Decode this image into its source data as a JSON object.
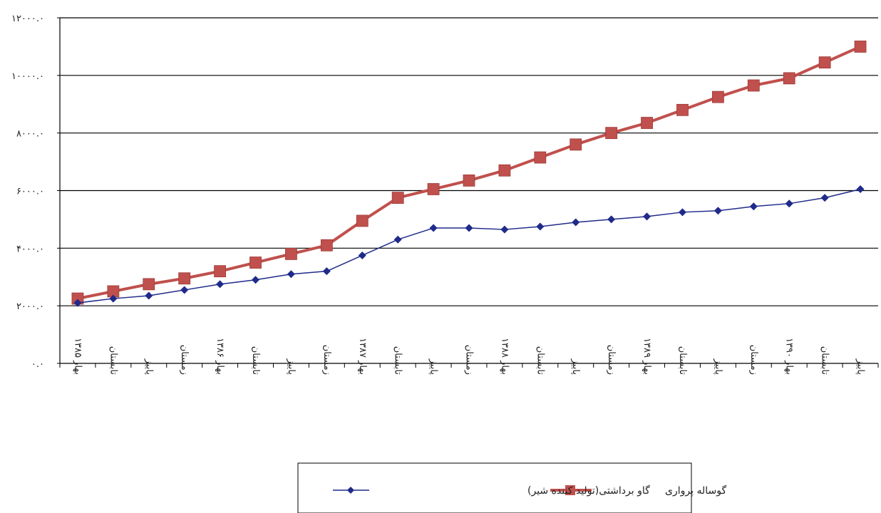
{
  "chart_data": {
    "type": "line",
    "title": "",
    "xlabel": "",
    "ylabel": "",
    "ylim": [
      0,
      12000
    ],
    "y_ticks": [
      0,
      2000,
      4000,
      6000,
      8000,
      10000,
      12000
    ],
    "y_tick_labels": [
      "۰.۰",
      "۲۰۰۰.۰",
      "۴۰۰۰.۰",
      "۶۰۰۰.۰",
      "۸۰۰۰.۰",
      "۱۰۰۰۰.۰",
      "۱۲۰۰۰.۰"
    ],
    "grid": "horizontal",
    "legend_position": "bottom",
    "categories": [
      "بهار ۱۳۸۵",
      "تابستان",
      "پاییز",
      "زمستان",
      "بهار ۱۳۸۶",
      "تابستان",
      "پاییز",
      "زمستان",
      "بهار ۱۳۸۷",
      "تابستان",
      "پاییز",
      "زمستان",
      "بهار ۱۳۸۸",
      "تابستان",
      "پاییز",
      "زمستان",
      "بهار ۱۳۸۹",
      "تابستان",
      "پاییز",
      "زمستان",
      "بهار ۱۳۹۰",
      "تابستان",
      "پاییز"
    ],
    "series": [
      {
        "name": "گوساله پرواری",
        "color": "#c0504d",
        "marker": "square",
        "values": [
          2250,
          2500,
          2750,
          2950,
          3200,
          3500,
          3800,
          4100,
          4950,
          5750,
          6050,
          6350,
          6700,
          7150,
          7600,
          8000,
          8350,
          8800,
          9250,
          9650,
          9900,
          10450,
          11000
        ]
      },
      {
        "name": "گاو برداشتی(تولید کننده شیر)",
        "color": "#1f2a8a",
        "marker": "diamond",
        "values": [
          2100,
          2250,
          2350,
          2550,
          2750,
          2900,
          3100,
          3200,
          3750,
          4300,
          4700,
          4700,
          4650,
          4750,
          4900,
          5000,
          5100,
          5250,
          5300,
          5450,
          5550,
          5750,
          6050
        ]
      }
    ]
  }
}
